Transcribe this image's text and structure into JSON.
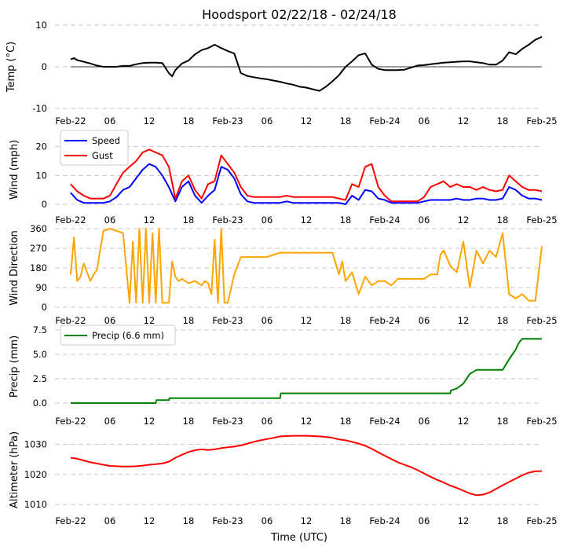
{
  "title": "Hoodsport 02/22/18 - 02/24/18",
  "xlabel": "Time (UTC)",
  "x_axis": {
    "range_hours": [
      0,
      72
    ],
    "ticks": [
      {
        "h": 0,
        "label": "Feb-22"
      },
      {
        "h": 6,
        "label": "06"
      },
      {
        "h": 12,
        "label": "12"
      },
      {
        "h": 18,
        "label": "18"
      },
      {
        "h": 24,
        "label": "Feb-23"
      },
      {
        "h": 30,
        "label": "06"
      },
      {
        "h": 36,
        "label": "12"
      },
      {
        "h": 42,
        "label": "18"
      },
      {
        "h": 48,
        "label": "Feb-24"
      },
      {
        "h": 54,
        "label": "06"
      },
      {
        "h": 60,
        "label": "12"
      },
      {
        "h": 66,
        "label": "18"
      },
      {
        "h": 72,
        "label": "Feb-25"
      }
    ]
  },
  "colors": {
    "temp": "#000000",
    "speed": "#0000ff",
    "gust": "#ff0000",
    "dir": "#ffa500",
    "precip": "#008000",
    "alt": "#ff0000"
  },
  "chart_data": [
    {
      "type": "line",
      "name": "temp",
      "ylabel": "Temp ($^\\circ$C)",
      "ylabel_display": "Temp (°C)",
      "ylim": [
        -10,
        10
      ],
      "yticks": [
        10,
        0,
        -10
      ],
      "zero_line": true,
      "series": [
        {
          "name": "Temp",
          "x": [
            0,
            0.5,
            1,
            2,
            3,
            4,
            5,
            6,
            7,
            8,
            9,
            10,
            11,
            12,
            13,
            14,
            15,
            15.5,
            16,
            17,
            18,
            19,
            20,
            21,
            22,
            23,
            24,
            25,
            26,
            27,
            28,
            29,
            30,
            31,
            32,
            33,
            34,
            35,
            36,
            37,
            38,
            39,
            40,
            41,
            42,
            43,
            44,
            45,
            46,
            47,
            48,
            49,
            50,
            51,
            52,
            53,
            54,
            55,
            56,
            57,
            58,
            59,
            60,
            61,
            62,
            63,
            64,
            65,
            66,
            67,
            68,
            69,
            70,
            71,
            72
          ],
          "values": [
            1.8,
            2.1,
            1.6,
            1.2,
            0.8,
            0.3,
            0,
            0,
            0,
            0.2,
            0.2,
            0.6,
            0.9,
            1,
            1,
            0.9,
            -1.5,
            -2.3,
            -0.8,
            0.8,
            1.5,
            3,
            4,
            4.5,
            5.3,
            4.5,
            3.8,
            3.2,
            -1.5,
            -2.2,
            -2.5,
            -2.8,
            -3,
            -3.3,
            -3.6,
            -4,
            -4.3,
            -4.8,
            -5,
            -5.4,
            -5.8,
            -4.8,
            -3.5,
            -2,
            0,
            1.3,
            2.8,
            3.2,
            0.5,
            -0.5,
            -0.8,
            -0.8,
            -0.8,
            -0.7,
            -0.2,
            0.3,
            0.4,
            0.6,
            0.8,
            1,
            1.1,
            1.2,
            1.3,
            1.3,
            1.1,
            0.9,
            0.5,
            0.5,
            1.5,
            3.5,
            3,
            4.3,
            5.3,
            6.5,
            7.2
          ]
        }
      ]
    },
    {
      "type": "line",
      "name": "wind",
      "ylabel": "Wind (mph)",
      "ylim": [
        0,
        24
      ],
      "yticks": [
        20,
        10,
        0
      ],
      "legend": "top-left",
      "series": [
        {
          "name": "Speed",
          "x": [
            0,
            1,
            2,
            3,
            4,
            5,
            6,
            7,
            8,
            9,
            10,
            11,
            12,
            13,
            14,
            15,
            16,
            17,
            18,
            19,
            20,
            21,
            22,
            23,
            24,
            25,
            26,
            27,
            28,
            29,
            30,
            31,
            32,
            33,
            34,
            35,
            36,
            37,
            38,
            39,
            40,
            41,
            42,
            43,
            44,
            45,
            46,
            47,
            48,
            49,
            50,
            51,
            52,
            53,
            54,
            55,
            56,
            57,
            58,
            59,
            60,
            61,
            62,
            63,
            64,
            65,
            66,
            67,
            68,
            69,
            70,
            71,
            72
          ],
          "values": [
            4,
            1.5,
            0.5,
            0.5,
            0.5,
            0.5,
            1,
            2.5,
            5,
            6,
            9,
            12,
            14,
            13,
            10,
            6,
            1,
            6,
            8,
            3,
            0.5,
            3,
            5,
            13,
            12,
            9,
            3.5,
            1,
            0.5,
            0.5,
            0.5,
            0.5,
            0.5,
            1,
            0.5,
            0.5,
            0.5,
            0.5,
            0.5,
            0.5,
            0.5,
            0.5,
            0,
            3,
            1.5,
            5,
            4.5,
            2,
            1.5,
            0.5,
            0.5,
            0.5,
            0.5,
            0.5,
            1,
            1.5,
            1.5,
            1.5,
            1.5,
            2,
            1.5,
            1.5,
            2,
            2,
            1.5,
            1.5,
            2,
            6,
            5,
            3,
            2,
            2,
            1.5
          ]
        },
        {
          "name": "Gust",
          "x": [
            0,
            1,
            2,
            3,
            4,
            5,
            6,
            7,
            8,
            9,
            10,
            11,
            12,
            13,
            14,
            15,
            16,
            17,
            18,
            19,
            20,
            21,
            22,
            23,
            24,
            25,
            26,
            27,
            28,
            29,
            30,
            31,
            32,
            33,
            34,
            35,
            36,
            37,
            38,
            39,
            40,
            41,
            42,
            43,
            44,
            45,
            46,
            47,
            48,
            49,
            50,
            51,
            52,
            53,
            54,
            55,
            56,
            57,
            58,
            59,
            60,
            61,
            62,
            63,
            64,
            65,
            66,
            67,
            68,
            69,
            70,
            71,
            72
          ],
          "values": [
            7,
            4.5,
            3,
            2,
            2,
            2,
            3,
            7,
            11,
            13,
            15,
            18,
            19,
            18,
            17,
            13,
            2,
            8,
            10,
            5,
            2,
            7,
            8,
            17,
            14,
            11,
            6,
            3,
            2.5,
            2.5,
            2.5,
            2.5,
            2.5,
            3,
            2.5,
            2.5,
            2.5,
            2.5,
            2.5,
            2.5,
            2.5,
            2,
            1.5,
            7,
            6,
            13,
            14,
            6,
            3,
            1,
            1,
            1,
            1,
            1,
            2.5,
            6,
            7,
            8,
            6,
            7,
            6,
            6,
            5,
            6,
            5,
            4.5,
            5,
            10,
            8,
            6,
            5,
            5,
            4.5
          ]
        }
      ]
    },
    {
      "type": "line",
      "name": "direction",
      "ylabel": "Wind Direction",
      "ylim": [
        0,
        360
      ],
      "yticks": [
        360,
        270,
        180,
        90,
        0
      ],
      "series": [
        {
          "name": "Direction",
          "x": [
            0,
            0.5,
            1,
            1.5,
            2,
            3,
            3.5,
            4,
            5,
            6,
            7,
            8,
            9,
            9.5,
            10,
            10.5,
            11,
            11.5,
            12,
            12.5,
            13,
            13.5,
            14,
            15,
            15.5,
            16,
            16.5,
            17,
            18,
            19,
            20,
            20.5,
            21,
            21.5,
            22,
            22.5,
            23,
            23.5,
            24,
            25,
            26,
            27,
            28,
            30,
            32,
            34,
            36,
            38,
            40,
            41,
            41.5,
            42,
            43,
            44,
            45,
            46,
            47,
            48,
            49,
            50,
            51,
            52,
            53,
            54,
            55,
            56,
            56.5,
            57,
            58,
            59,
            60,
            61,
            62,
            63,
            64,
            65,
            66,
            67,
            68,
            69,
            70,
            71,
            72
          ],
          "values": [
            150,
            320,
            120,
            140,
            200,
            120,
            150,
            170,
            350,
            360,
            350,
            340,
            20,
            300,
            20,
            360,
            20,
            360,
            20,
            340,
            20,
            360,
            20,
            20,
            210,
            140,
            120,
            130,
            110,
            120,
            100,
            120,
            110,
            60,
            310,
            20,
            360,
            20,
            20,
            150,
            230,
            230,
            230,
            230,
            250,
            250,
            250,
            250,
            250,
            150,
            210,
            120,
            160,
            60,
            140,
            100,
            120,
            120,
            100,
            130,
            130,
            130,
            130,
            130,
            150,
            150,
            240,
            260,
            190,
            160,
            300,
            90,
            260,
            200,
            260,
            230,
            340,
            60,
            40,
            60,
            30,
            30,
            280
          ]
        }
      ]
    },
    {
      "type": "line",
      "name": "precip",
      "ylabel": "Precip (mm)",
      "ylim": [
        0,
        7.5
      ],
      "yticks": [
        7.5,
        5.0,
        2.5,
        0.0
      ],
      "legend": "top-left",
      "series": [
        {
          "name": "Precip (6.6 mm)",
          "x": [
            0,
            13,
            13.1,
            15,
            15.1,
            32,
            32.1,
            58,
            58.1,
            59,
            60,
            61,
            62,
            62.5,
            63,
            66,
            67,
            68,
            68.5,
            69,
            72
          ],
          "values": [
            0,
            0,
            0.3,
            0.3,
            0.5,
            0.5,
            1.0,
            1.0,
            1.3,
            1.5,
            2.0,
            3.0,
            3.4,
            3.4,
            3.4,
            3.4,
            4.5,
            5.5,
            6.2,
            6.6,
            6.6
          ]
        }
      ]
    },
    {
      "type": "line",
      "name": "altimeter",
      "ylabel": "Altimeter (hPa)",
      "ylim": [
        1009,
        1034
      ],
      "yticks": [
        1030,
        1020,
        1010
      ],
      "series": [
        {
          "name": "Altimeter",
          "x": [
            0,
            1,
            2,
            3,
            4,
            5,
            6,
            7,
            8,
            9,
            10,
            11,
            12,
            13,
            14,
            15,
            16,
            17,
            18,
            19,
            20,
            21,
            22,
            23,
            24,
            25,
            26,
            27,
            28,
            29,
            30,
            31,
            32,
            33,
            34,
            35,
            36,
            37,
            38,
            39,
            40,
            41,
            42,
            43,
            44,
            45,
            46,
            47,
            48,
            49,
            50,
            51,
            52,
            53,
            54,
            55,
            56,
            57,
            58,
            59,
            60,
            61,
            62,
            63,
            64,
            65,
            66,
            67,
            68,
            69,
            70,
            71,
            72
          ],
          "values": [
            1025.5,
            1025.2,
            1024.6,
            1024,
            1023.6,
            1023.2,
            1022.8,
            1022.7,
            1022.6,
            1022.6,
            1022.7,
            1022.9,
            1023.2,
            1023.4,
            1023.6,
            1024.2,
            1025.5,
            1026.5,
            1027.4,
            1028,
            1028.3,
            1028.1,
            1028.3,
            1028.7,
            1029,
            1029.2,
            1029.6,
            1030.2,
            1030.8,
            1031.3,
            1031.7,
            1032.1,
            1032.6,
            1032.7,
            1032.8,
            1032.8,
            1032.8,
            1032.7,
            1032.6,
            1032.4,
            1032.1,
            1031.6,
            1031.3,
            1030.8,
            1030.2,
            1029.5,
            1028.5,
            1027.3,
            1026.2,
            1025.1,
            1024,
            1023.2,
            1022.4,
            1021.4,
            1020.3,
            1019.2,
            1018.2,
            1017.3,
            1016.3,
            1015.5,
            1014.6,
            1013.7,
            1013.1,
            1013.3,
            1014,
            1015.2,
            1016.4,
            1017.5,
            1018.6,
            1019.7,
            1020.6,
            1021,
            1021.1
          ]
        }
      ]
    }
  ]
}
